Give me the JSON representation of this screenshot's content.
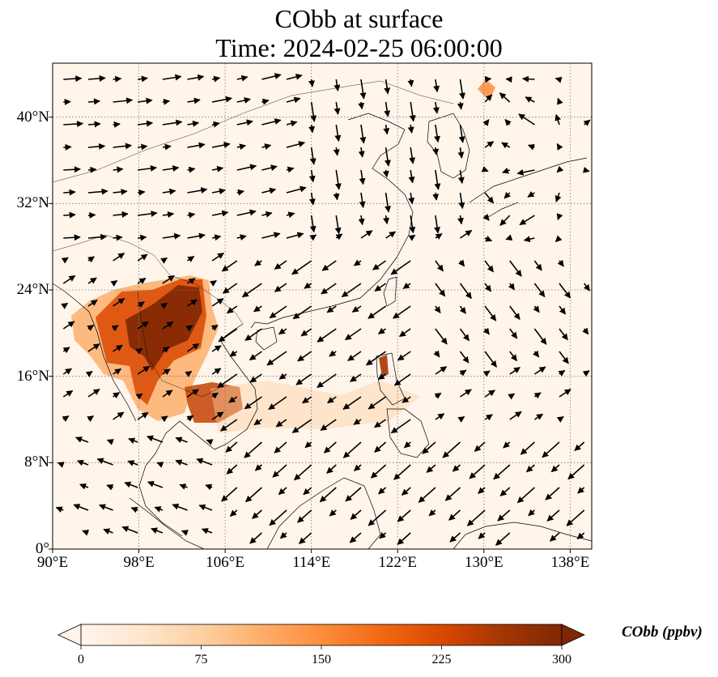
{
  "title": {
    "line1": "CObb at surface",
    "line2": "Time: 2024-02-25 06:00:00"
  },
  "map": {
    "lon_range": [
      90,
      140
    ],
    "lat_range": [
      0,
      45
    ],
    "lon_ticks": [
      {
        "value": 90,
        "label": "90°E"
      },
      {
        "value": 98,
        "label": "98°E"
      },
      {
        "value": 106,
        "label": "106°E"
      },
      {
        "value": 114,
        "label": "114°E"
      },
      {
        "value": 122,
        "label": "122°E"
      },
      {
        "value": 130,
        "label": "130°E"
      },
      {
        "value": 138,
        "label": "138°E"
      }
    ],
    "lat_ticks": [
      {
        "value": 0,
        "label": "0°"
      },
      {
        "value": 8,
        "label": "8°N"
      },
      {
        "value": 16,
        "label": "16°N"
      },
      {
        "value": 24,
        "label": "24°N"
      },
      {
        "value": 32,
        "label": "32°N"
      },
      {
        "value": 40,
        "label": "40°N"
      }
    ],
    "gridlines": "dotted",
    "background_color": "#fff5eb",
    "coastline_color": "#000000",
    "arrow_color": "#000000"
  },
  "colorbar": {
    "label": "CObb (ppbv)",
    "min": 0,
    "max": 300,
    "ticks": [
      {
        "value": 0,
        "label": "0"
      },
      {
        "value": 75,
        "label": "75"
      },
      {
        "value": 150,
        "label": "150"
      },
      {
        "value": 225,
        "label": "225"
      },
      {
        "value": 300,
        "label": "300"
      }
    ],
    "colors": [
      "#fff5eb",
      "#fee6ce",
      "#fdd0a2",
      "#fdae6b",
      "#fd8d3c",
      "#f16913",
      "#d94801",
      "#a63603",
      "#7f2704"
    ],
    "extend": "both"
  }
}
